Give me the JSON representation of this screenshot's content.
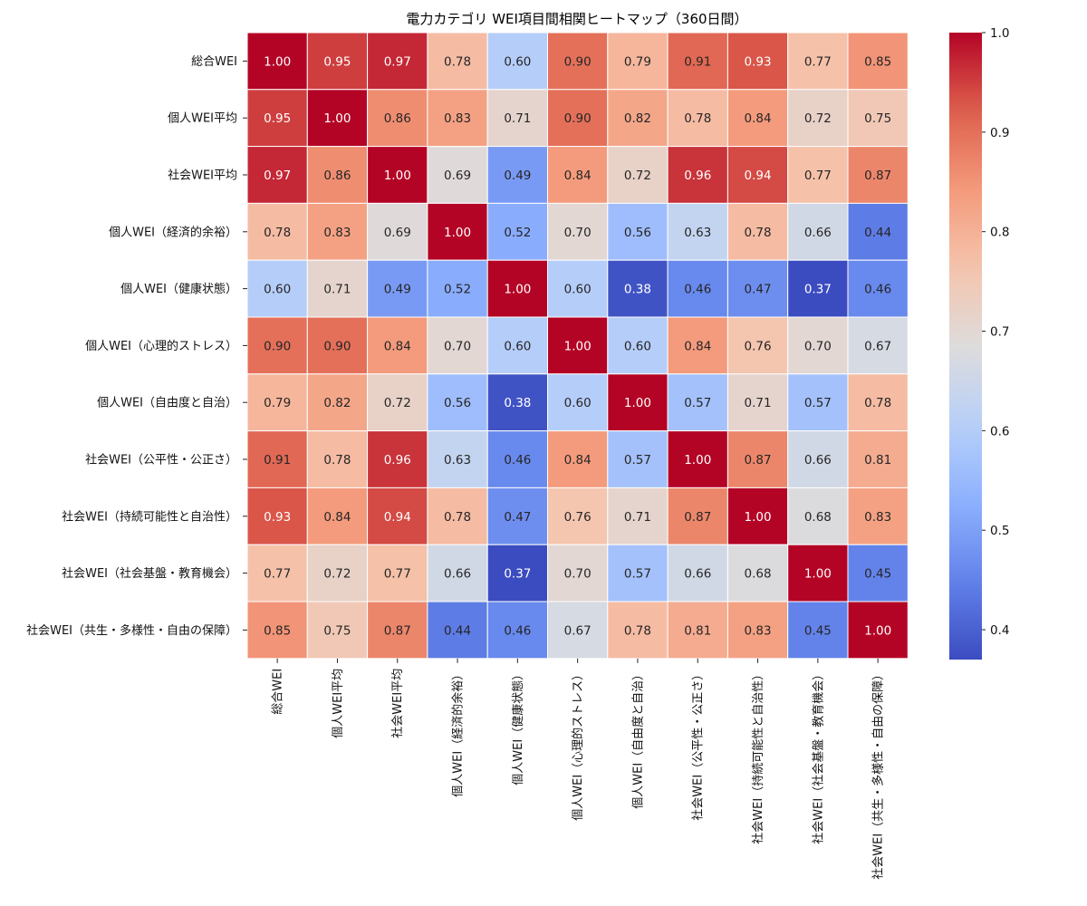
{
  "chart_data": {
    "type": "heatmap",
    "title": "電力カテゴリ WEI項目間相関ヒートマップ（360日間）",
    "xlabel": "",
    "ylabel": "",
    "colormap": "coolwarm",
    "colorbar": {
      "range": [
        0.37,
        1.0
      ],
      "ticks": [
        "0.4",
        "0.5",
        "0.6",
        "0.7",
        "0.8",
        "0.9",
        "1.0"
      ]
    },
    "categories": [
      "総合WEI",
      "個人WEI平均",
      "社会WEI平均",
      "個人WEI（経済的余裕）",
      "個人WEI（健康状態）",
      "個人WEI（心理的ストレス）",
      "個人WEI（自由度と自治）",
      "社会WEI（公平性・公正さ）",
      "社会WEI（持続可能性と自治性）",
      "社会WEI（社会基盤・教育機会）",
      "社会WEI（共生・多様性・自由の保障）"
    ],
    "matrix": [
      [
        1.0,
        0.95,
        0.97,
        0.78,
        0.6,
        0.9,
        0.79,
        0.91,
        0.93,
        0.77,
        0.85
      ],
      [
        0.95,
        1.0,
        0.86,
        0.83,
        0.71,
        0.9,
        0.82,
        0.78,
        0.84,
        0.72,
        0.75
      ],
      [
        0.97,
        0.86,
        1.0,
        0.69,
        0.49,
        0.84,
        0.72,
        0.96,
        0.94,
        0.77,
        0.87
      ],
      [
        0.78,
        0.83,
        0.69,
        1.0,
        0.52,
        0.7,
        0.56,
        0.63,
        0.78,
        0.66,
        0.44
      ],
      [
        0.6,
        0.71,
        0.49,
        0.52,
        1.0,
        0.6,
        0.38,
        0.46,
        0.47,
        0.37,
        0.46
      ],
      [
        0.9,
        0.9,
        0.84,
        0.7,
        0.6,
        1.0,
        0.6,
        0.84,
        0.76,
        0.7,
        0.67
      ],
      [
        0.79,
        0.82,
        0.72,
        0.56,
        0.38,
        0.6,
        1.0,
        0.57,
        0.71,
        0.57,
        0.78
      ],
      [
        0.91,
        0.78,
        0.96,
        0.63,
        0.46,
        0.84,
        0.57,
        1.0,
        0.87,
        0.66,
        0.81
      ],
      [
        0.93,
        0.84,
        0.94,
        0.78,
        0.47,
        0.76,
        0.71,
        0.87,
        1.0,
        0.68,
        0.83
      ],
      [
        0.77,
        0.72,
        0.77,
        0.66,
        0.37,
        0.7,
        0.57,
        0.66,
        0.68,
        1.0,
        0.45
      ],
      [
        0.85,
        0.75,
        0.87,
        0.44,
        0.46,
        0.67,
        0.78,
        0.81,
        0.83,
        0.45,
        1.0
      ]
    ]
  }
}
